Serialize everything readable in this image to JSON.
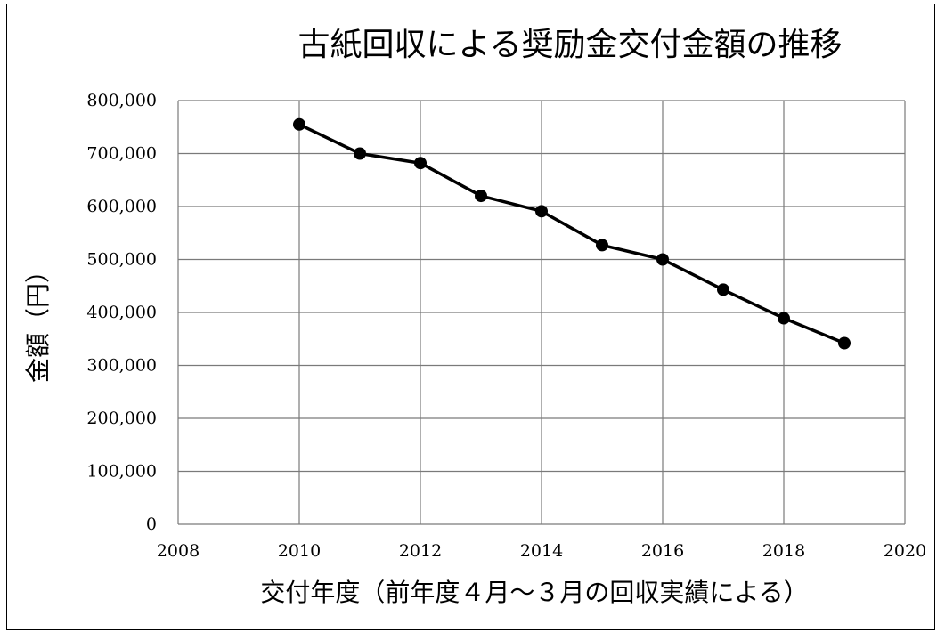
{
  "chart_data": {
    "type": "line",
    "title": "古紙回収による奨励金交付金額の推移",
    "xlabel": "交付年度（前年度４月～３月の回収実績による）",
    "ylabel": "金額（円）",
    "xlim": [
      2008,
      2020
    ],
    "ylim": [
      0,
      800000
    ],
    "x_ticks": [
      2008,
      2010,
      2012,
      2014,
      2016,
      2018,
      2020
    ],
    "x_tick_labels": [
      "2008",
      "2010",
      "2012",
      "2014",
      "2016",
      "2018",
      "2020"
    ],
    "y_ticks": [
      0,
      100000,
      200000,
      300000,
      400000,
      500000,
      600000,
      700000,
      800000
    ],
    "y_tick_labels": [
      "0",
      "100,000",
      "200,000",
      "300,000",
      "400,000",
      "500,000",
      "600,000",
      "700,000",
      "800,000"
    ],
    "grid": true,
    "x": [
      2010,
      2011,
      2012,
      2013,
      2014,
      2015,
      2016,
      2017,
      2018,
      2019
    ],
    "series": [
      {
        "values": [
          755000,
          700000,
          682000,
          620000,
          591000,
          527000,
          500000,
          443000,
          389000,
          342000
        ],
        "color": "#000000"
      }
    ]
  }
}
